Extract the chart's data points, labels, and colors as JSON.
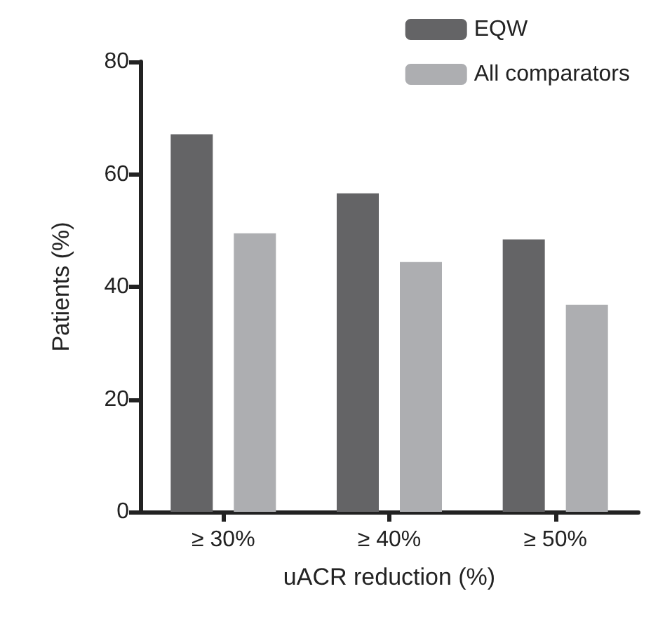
{
  "chart_data": {
    "type": "bar",
    "xlabel": "uACR reduction (%)",
    "ylabel": "Patients (%)",
    "categories": [
      "≥ 30%",
      "≥ 40%",
      "≥ 50%"
    ],
    "series": [
      {
        "name": "EQW",
        "color": "#646466",
        "values": [
          67.1,
          56.6,
          48.4
        ]
      },
      {
        "name": "All comparators",
        "color": "#adaeb1",
        "values": [
          49.5,
          44.4,
          36.8
        ]
      }
    ],
    "ylim": [
      0,
      80
    ],
    "yticks": [
      0,
      20,
      40,
      60,
      80
    ],
    "grid": false,
    "legend": "top right"
  }
}
